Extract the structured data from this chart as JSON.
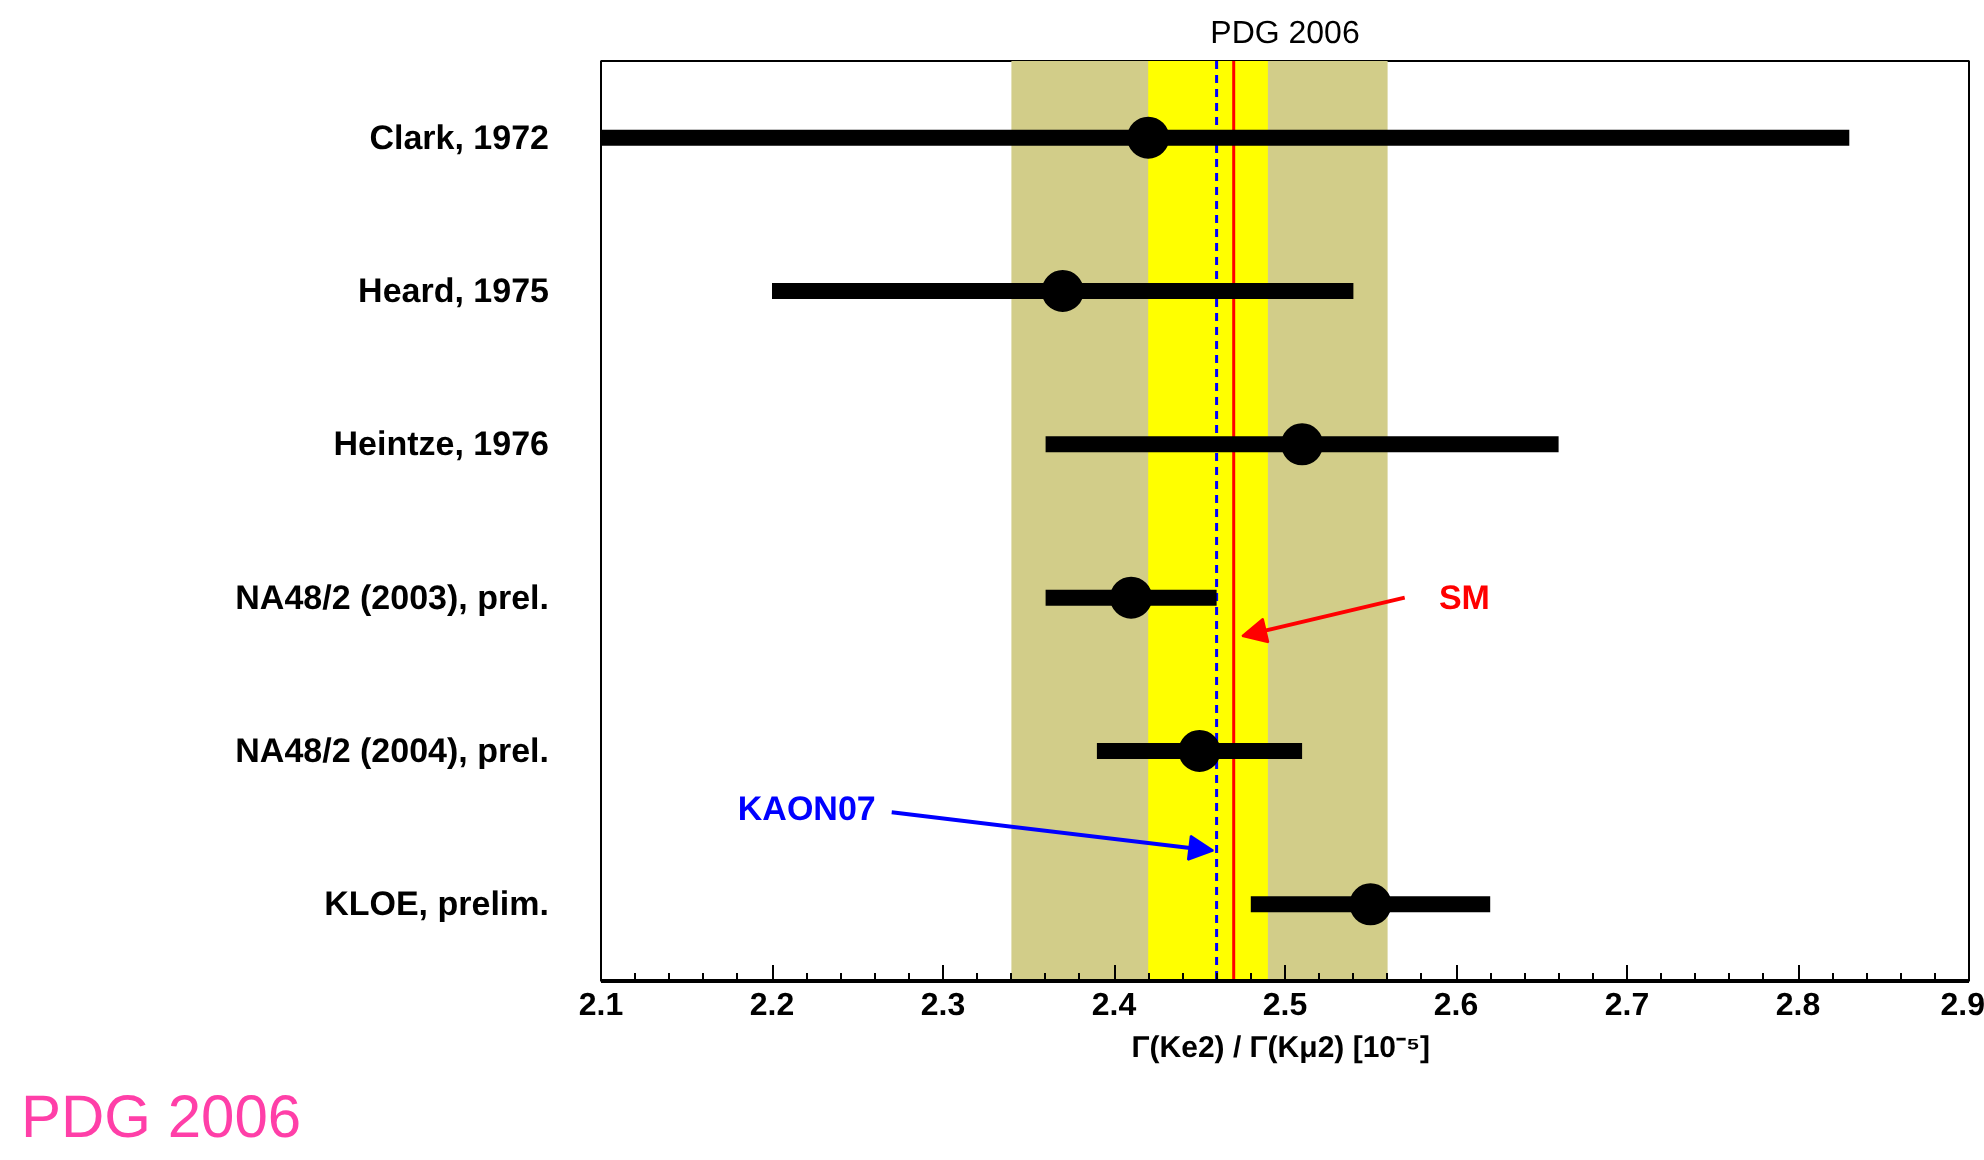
{
  "chart_data": {
    "type": "scatter",
    "title": "PDG 2006",
    "orientation": "horizontal",
    "categories": [
      "Clark, 1972",
      "Heard, 1975",
      "Heintze, 1976",
      "NA48/2 (2003), prel.",
      "NA48/2 (2004), prel.",
      "KLOE, prelim."
    ],
    "values": [
      2.42,
      2.37,
      2.51,
      2.41,
      2.45,
      2.55
    ],
    "errors": [
      [
        2.1,
        2.83
      ],
      [
        2.2,
        2.54
      ],
      [
        2.36,
        2.66
      ],
      [
        2.36,
        2.46
      ],
      [
        2.39,
        2.51
      ],
      [
        2.48,
        2.62
      ]
    ],
    "color": "#000000",
    "marker": "circle",
    "xlabel": "Γ(Ke2) / Γ(Kμ2)  [10⁻⁵]",
    "xlim": [
      2.1,
      2.9
    ],
    "xticks": [
      2.1,
      2.2,
      2.3,
      2.4,
      2.5,
      2.6,
      2.7,
      2.8,
      2.9
    ],
    "bands": [
      {
        "axis": "x",
        "from": 2.34,
        "to": 2.56,
        "color": "#d2cd89"
      },
      {
        "axis": "x",
        "from": 2.42,
        "to": 2.49,
        "color": "#ffff00"
      }
    ],
    "ref_lines": [
      {
        "axis": "x",
        "value": 2.46,
        "label": "KAON07",
        "color": "#0000ff",
        "line_style": "dashed"
      },
      {
        "axis": "x",
        "value": 2.47,
        "label": "SM",
        "color": "#ff0000",
        "line_style": "solid"
      }
    ],
    "annotations": [
      "PDG 2006"
    ],
    "grid": false
  }
}
